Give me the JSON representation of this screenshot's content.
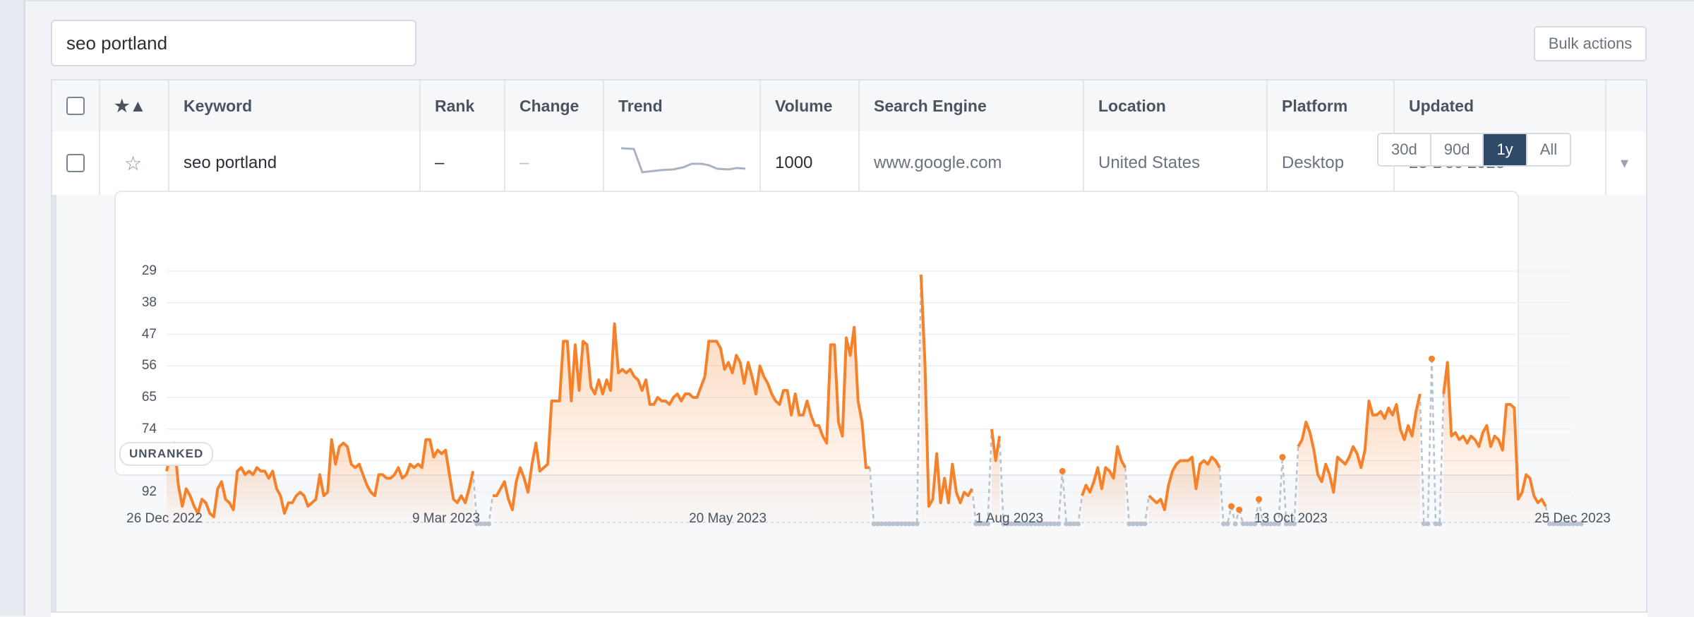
{
  "search": {
    "value": "seo portland"
  },
  "toolbar": {
    "bulk_actions_label": "Bulk actions"
  },
  "table": {
    "headers": {
      "star": "★▲",
      "keyword": "Keyword",
      "rank": "Rank",
      "change": "Change",
      "trend": "Trend",
      "volume": "Volume",
      "search_engine": "Search Engine",
      "location": "Location",
      "platform": "Platform",
      "updated": "Updated"
    },
    "row": {
      "star_icon": "☆",
      "keyword": "seo portland",
      "rank": "–",
      "change": "–",
      "volume": "1000",
      "search_engine": "www.google.com",
      "location": "United States",
      "platform": "Desktop",
      "updated": "25 Dec 2023",
      "dropdown_icon": "▾"
    }
  },
  "range_buttons": [
    {
      "label": "30d",
      "active": false
    },
    {
      "label": "90d",
      "active": false
    },
    {
      "label": "1y",
      "active": true
    },
    {
      "label": "All",
      "active": false
    }
  ],
  "colors": {
    "accent": "#f5812a",
    "active_button": "#2f4a68",
    "unranked_line": "#b8c2cf"
  },
  "chart_data": {
    "type": "line",
    "y_inverted": true,
    "y_ticks": [
      "29",
      "38",
      "47",
      "56",
      "65",
      "74",
      "83",
      "92"
    ],
    "ylim": [
      29,
      101
    ],
    "x_tick_labels": [
      "26 Dec 2022",
      "9 Mar 2023",
      "20 May 2023",
      "1 Aug 2023",
      "13 Oct 2023",
      "25 Dec 2023"
    ],
    "x_range": [
      "2022-12-26",
      "2023-12-25"
    ],
    "unranked_label": "UNRANKED",
    "grid": true,
    "series": [
      {
        "values_by_day": [
          86,
          81,
          78,
          90,
          96,
          91,
          93,
          96,
          98,
          94,
          95,
          98,
          99,
          91,
          89,
          94,
          95,
          97,
          86,
          85,
          87,
          86,
          87,
          85,
          86,
          86,
          88,
          86,
          91,
          93,
          98,
          95,
          95,
          93,
          92,
          93,
          96,
          95,
          94,
          87,
          93,
          92,
          77,
          84,
          79,
          78,
          79,
          84,
          85,
          84,
          87,
          90,
          92,
          93,
          87,
          87,
          88,
          88,
          87,
          85,
          88,
          87,
          84,
          85,
          84,
          85,
          77,
          77,
          82,
          80,
          81,
          80,
          87,
          94,
          95,
          93,
          95,
          91,
          86,
          101,
          101,
          101,
          101,
          93,
          93,
          91,
          89,
          94,
          97,
          89,
          85,
          88,
          92,
          84,
          78,
          86,
          85,
          84,
          66,
          66,
          66,
          49,
          49,
          66,
          50,
          63,
          49,
          50,
          62,
          64,
          60,
          64,
          60,
          63,
          44,
          58,
          57,
          58,
          57,
          59,
          60,
          63,
          60,
          67,
          67,
          65,
          66,
          66,
          67,
          65,
          64,
          66,
          64,
          64,
          65,
          65,
          62,
          59,
          49,
          49,
          49,
          51,
          57,
          55,
          58,
          53,
          55,
          61,
          55,
          59,
          64,
          56,
          59,
          61,
          64,
          66,
          67,
          63,
          63,
          70,
          64,
          70,
          70,
          66,
          70,
          73,
          73,
          76,
          78,
          50,
          50,
          72,
          76,
          48,
          53,
          45,
          66,
          72,
          85,
          85,
          101,
          101,
          101,
          101,
          101,
          101,
          101,
          101,
          101,
          101,
          101,
          101,
          30,
          55,
          96,
          94,
          81,
          95,
          88,
          95,
          84,
          92,
          95,
          92,
          93,
          91,
          101,
          101,
          101,
          101,
          74,
          83,
          76,
          101,
          101,
          101,
          101,
          101,
          101,
          101,
          101,
          101,
          101,
          101,
          101,
          101,
          101,
          101,
          86,
          101,
          101,
          101,
          101,
          93,
          90,
          92,
          89,
          85,
          91,
          85,
          86,
          88,
          79,
          83,
          85,
          101,
          101,
          101,
          101,
          101,
          93,
          94,
          95,
          94,
          97,
          90,
          86,
          84,
          83,
          83,
          83,
          82,
          91,
          84,
          83,
          84,
          82,
          83,
          85,
          101,
          101,
          96,
          101,
          97,
          101,
          101,
          101,
          101,
          94,
          101,
          101,
          101,
          101,
          101,
          82,
          101,
          101,
          101,
          79,
          77,
          72,
          75,
          80,
          87,
          89,
          84,
          87,
          92,
          82,
          83,
          84,
          82,
          79,
          81,
          85,
          80,
          66,
          70,
          70,
          69,
          71,
          68,
          70,
          67,
          74,
          77,
          73,
          76,
          69,
          64,
          101,
          101,
          54,
          101,
          101,
          64,
          55,
          76,
          75,
          77,
          76,
          78,
          76,
          77,
          79,
          75,
          73,
          79,
          76,
          77,
          80,
          67,
          67,
          68,
          94,
          92,
          87,
          88,
          93,
          95,
          94,
          96,
          101,
          101,
          101,
          101,
          101,
          101,
          101,
          101,
          101
        ]
      }
    ]
  }
}
